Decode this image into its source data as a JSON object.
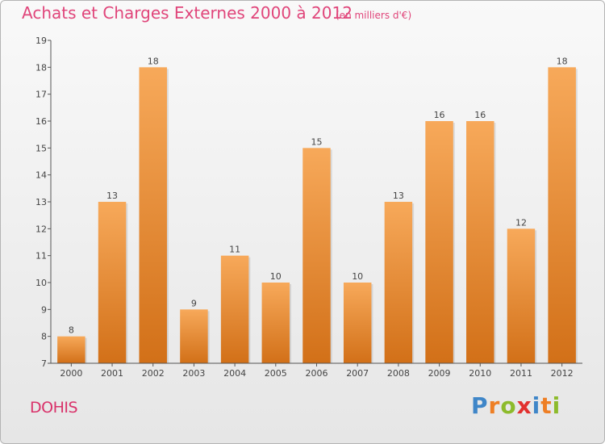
{
  "header": {
    "title": "Achats et Charges Externes 2000 à 2012",
    "subtitle": "(en milliers d'€)"
  },
  "footer": {
    "location": "DOHIS",
    "brand_letters": [
      "P",
      "r",
      "o",
      "x",
      "i",
      "t",
      "i"
    ],
    "brand_colors": [
      "#3f86c8",
      "#ee7f25",
      "#8dbb2c",
      "#e2312f",
      "#3f86c8",
      "#ee7f25",
      "#8dbb2c"
    ]
  },
  "chart_data": {
    "type": "bar",
    "title": "Achats et Charges Externes 2000 à 2012",
    "subtitle": "(en milliers d'€)",
    "categories": [
      "2000",
      "2001",
      "2002",
      "2003",
      "2004",
      "2005",
      "2006",
      "2007",
      "2008",
      "2009",
      "2010",
      "2011",
      "2012"
    ],
    "values": [
      8,
      13,
      18,
      9,
      11,
      10,
      15,
      10,
      13,
      16,
      16,
      12,
      18
    ],
    "ylim": [
      7,
      19
    ],
    "yticks": [
      7,
      8,
      9,
      10,
      11,
      12,
      13,
      14,
      15,
      16,
      17,
      18,
      19
    ],
    "grid": false,
    "bar_colors": {
      "top": "#f7a95a",
      "bottom": "#d27018"
    },
    "axis_color": "#555555"
  }
}
